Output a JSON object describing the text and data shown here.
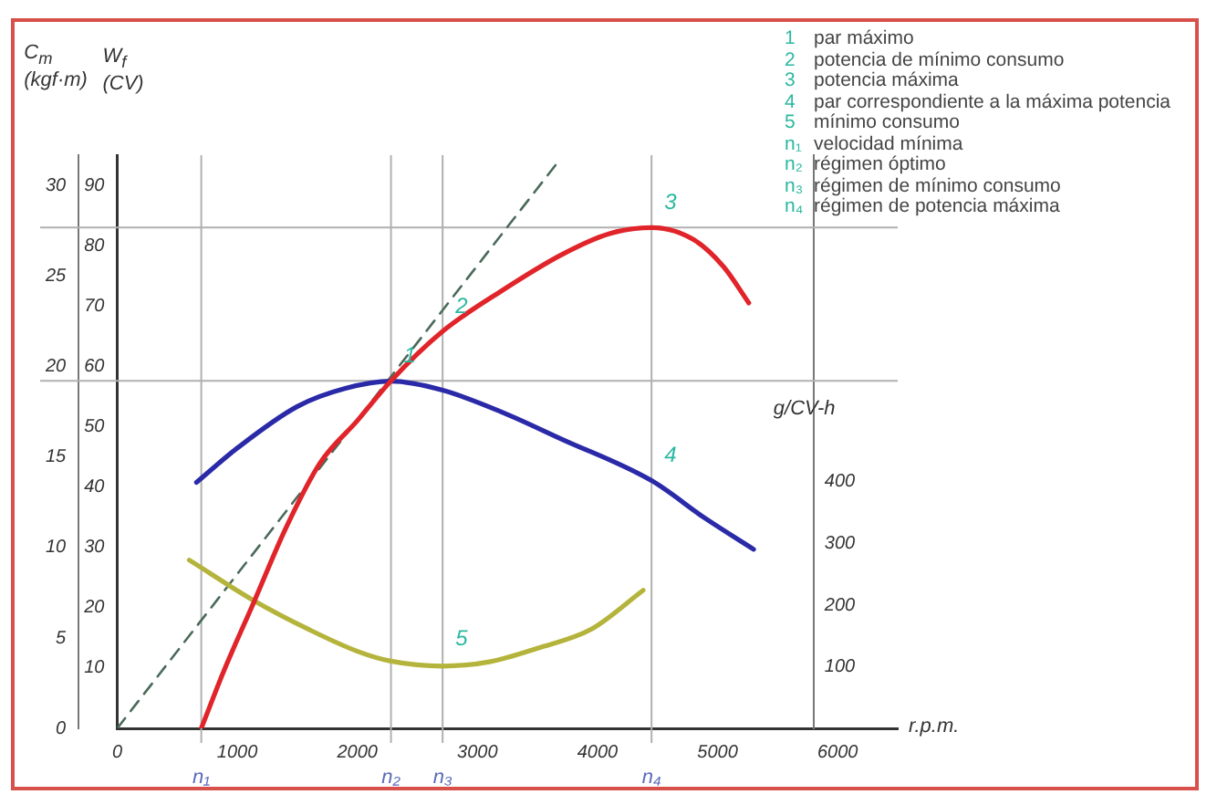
{
  "chart_data": {
    "type": "line",
    "xlabel": "r.p.m.",
    "ylabel": "W$_{f}$ (CV)",
    "y2label": "g/CV-h",
    "y3label": "C$_{m}$ (kgf·m)",
    "xlim": [
      0,
      6500
    ],
    "xticks": [
      0,
      1000,
      2000,
      3000,
      4000,
      5000,
      6000
    ],
    "ylim": [
      0,
      95
    ],
    "yticks": [
      10,
      20,
      30,
      40,
      50,
      60,
      70,
      80,
      90
    ],
    "y2lim": [
      0,
      930
    ],
    "y2ticks": [
      100,
      200,
      300,
      400
    ],
    "y3lim": [
      0,
      31.7
    ],
    "y3ticks": [
      0,
      5,
      10,
      15,
      20,
      25,
      30
    ],
    "grid": false,
    "legend": false,
    "marker": "none",
    "series": [
      {
        "color": "#e0242a",
        "x": [
          700,
          890,
          1140,
          1400,
          1690,
          2000,
          2280,
          2710,
          3200,
          3700,
          4100,
          4450,
          4800,
          5050,
          5260
        ],
        "values": [
          0,
          9.6,
          21,
          33,
          44,
          51,
          57.6,
          65.8,
          72.5,
          78.5,
          82,
          83,
          81,
          76.5,
          70.5
        ]
      },
      {
        "color": "#2a2aa8",
        "axis": "y3",
        "x": [
          660,
          1000,
          1500,
          1900,
          2280,
          2710,
          3200,
          3700,
          4450,
          4900,
          5300
        ],
        "values": [
          13.6,
          15.5,
          17.8,
          18.8,
          19.2,
          18.7,
          17.5,
          16,
          13.7,
          11.6,
          9.9
        ]
      },
      {
        "color": "#b4b43c",
        "axis": "y2",
        "x": [
          600,
          1140,
          1600,
          2000,
          2280,
          2710,
          3100,
          3500,
          3950,
          4380
        ],
        "values": [
          273,
          207,
          160,
          125,
          109,
          101,
          108,
          130,
          161,
          224
        ]
      },
      {
        "color": "#4a6a5a",
        "line_style": "dashed",
        "x": [
          0,
          3660
        ],
        "values": [
          0,
          93.6
        ]
      }
    ],
    "ref_lines": [
      {
        "axis": "x",
        "value": 700,
        "label": "n₁",
        "color": "#b0b0b0"
      },
      {
        "axis": "x",
        "value": 2280,
        "label": "n₂",
        "color": "#b0b0b0"
      },
      {
        "axis": "x",
        "value": 2710,
        "label": "n₃",
        "color": "#b0b0b0"
      },
      {
        "axis": "x",
        "value": 4450,
        "label": "n₄",
        "color": "#b0b0b0"
      },
      {
        "axis": "y",
        "value": 83,
        "color": "#b0b0b0"
      },
      {
        "axis": "y",
        "value": 57.6,
        "color": "#b0b0b0"
      }
    ],
    "annotations": [
      {
        "text": "1",
        "x": 2280,
        "y": 57.6
      },
      {
        "text": "2",
        "x": 2710,
        "y": 65.8
      },
      {
        "text": "3",
        "x": 4450,
        "y": 83
      },
      {
        "text": "4",
        "x": 4450,
        "y": 41.2
      },
      {
        "text": "5",
        "x": 2710,
        "y": 10.8
      },
      "1 par máximo",
      "2 potencia de mínimo consumo",
      "3 potencia máxima",
      "4 par correspondiente a la máxima potencia",
      "5 mínimo consumo",
      "n₁ velocidad mínima",
      "n₂ régimen óptimo",
      "n₃ régimen de mínimo consumo",
      "n₄ régimen de potencia máxima"
    ]
  }
}
